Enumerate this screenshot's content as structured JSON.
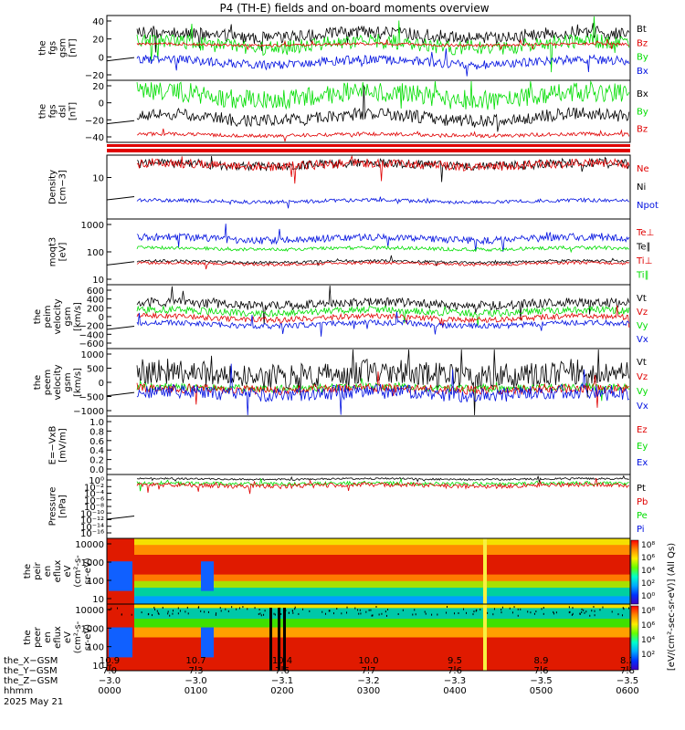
{
  "title": "P4 (TH-E) fields and on-board moments overview",
  "colors": {
    "black": "#000000",
    "red": "#e00000",
    "green": "#00dd00",
    "blue": "#0010e0"
  },
  "panels": [
    {
      "id": "fgs_gsm",
      "ylabel": [
        "the",
        "fgs",
        "gsm",
        "[nT]"
      ],
      "yticks": [
        "40",
        "20",
        "0",
        "−20"
      ],
      "legend": [
        {
          "text": "Bt",
          "color": "black"
        },
        {
          "text": "Bz",
          "color": "red"
        },
        {
          "text": "By",
          "color": "green"
        },
        {
          "text": "Bx",
          "color": "blue"
        }
      ]
    },
    {
      "id": "fgs_dsl",
      "ylabel": [
        "the",
        "fgs",
        "dsl",
        "[nT]"
      ],
      "yticks": [
        "20",
        "0",
        "−20",
        "−40"
      ],
      "legend": [
        {
          "text": "Bx",
          "color": "black"
        },
        {
          "text": "By",
          "color": "green"
        },
        {
          "text": "Bz",
          "color": "red"
        }
      ]
    },
    {
      "id": "density",
      "ylabel": [
        "Density",
        "[cm−3]"
      ],
      "yticks": [
        "10"
      ],
      "legend": [
        {
          "text": "Ne",
          "color": "red"
        },
        {
          "text": "Ni",
          "color": "black"
        },
        {
          "text": "Npot",
          "color": "blue"
        }
      ]
    },
    {
      "id": "temp",
      "ylabel": [
        "moqt3",
        "[eV]"
      ],
      "yticks": [
        "1000",
        "100",
        "10"
      ],
      "legend": [
        {
          "text": "Te⊥",
          "color": "red"
        },
        {
          "text": "Te∥",
          "color": "black"
        },
        {
          "text": "Ti⊥",
          "color": "red"
        },
        {
          "text": "Ti∥",
          "color": "green"
        }
      ]
    },
    {
      "id": "peim_vel",
      "ylabel": [
        "the",
        "peim",
        "velocity",
        "gsm",
        "[km/s]"
      ],
      "yticks": [
        "600",
        "400",
        "200",
        "0",
        "−200",
        "−400",
        "−600"
      ],
      "legend": [
        {
          "text": "Vt",
          "color": "black"
        },
        {
          "text": "Vz",
          "color": "red"
        },
        {
          "text": "Vy",
          "color": "green"
        },
        {
          "text": "Vx",
          "color": "blue"
        }
      ]
    },
    {
      "id": "peem_vel",
      "ylabel": [
        "the",
        "peem",
        "velocity",
        "gsm",
        "[km/s]"
      ],
      "yticks": [
        "1000",
        "500",
        "0",
        "−500",
        "−1000"
      ],
      "legend": [
        {
          "text": "Vt",
          "color": "black"
        },
        {
          "text": "Vz",
          "color": "red"
        },
        {
          "text": "Vy",
          "color": "green"
        },
        {
          "text": "Vx",
          "color": "blue"
        }
      ]
    },
    {
      "id": "efield",
      "ylabel": [
        "E=−VxB",
        "[mV/m]"
      ],
      "yticks": [
        "1.0",
        "0.8",
        "0.6",
        "0.4",
        "0.2",
        "0.0"
      ],
      "legend": [
        {
          "text": "Ez",
          "color": "red"
        },
        {
          "text": "Ey",
          "color": "green"
        },
        {
          "text": "Ex",
          "color": "blue"
        }
      ]
    },
    {
      "id": "pressure",
      "ylabel": [
        "Pressure",
        "[nPa]"
      ],
      "yticks": [
        "10⁰",
        "10⁻²",
        "10⁻⁴",
        "10⁻⁶",
        "10⁻⁸",
        "10⁻¹⁰",
        "10⁻¹²",
        "10⁻¹⁴",
        "10⁻¹⁶"
      ],
      "legend": [
        {
          "text": "Pt",
          "color": "black"
        },
        {
          "text": "Pb",
          "color": "red"
        },
        {
          "text": "Pe",
          "color": "green"
        },
        {
          "text": "Pi",
          "color": "blue"
        }
      ]
    },
    {
      "id": "peir",
      "ylabel": [
        "the",
        "peir",
        "en",
        "eflux",
        "eV",
        "(cm²-s-",
        "sr-eV)"
      ],
      "yticks": [
        "10000",
        "1000",
        "100",
        "10"
      ],
      "legend": []
    },
    {
      "id": "peer",
      "ylabel": [
        "the",
        "peer",
        "en",
        "eflux",
        "eV",
        "(cm²-s-",
        "sr-eV)"
      ],
      "yticks": [
        "10000",
        "1000",
        "100",
        "10"
      ],
      "legend": []
    }
  ],
  "colorbar": {
    "label": "[eV/(cm²-sec-sr-eV)] (All Qs)",
    "ticks_top": [
      "10⁸",
      "10⁶",
      "10⁴",
      "10²",
      "10⁰"
    ],
    "ticks_bottom": [
      "10⁸",
      "10⁶",
      "10⁴",
      "10²"
    ]
  },
  "xaxis": {
    "row_labels": [
      "the_X−GSM",
      "the_Y−GSM",
      "the_Z−GSM",
      "hhmm",
      "2025 May 21"
    ],
    "ticks": [
      {
        "x": "10.9",
        "y": "7.0",
        "z": "−3.0",
        "t": "0000"
      },
      {
        "x": "10.7",
        "y": "7.3",
        "z": "−3.0",
        "t": "0100"
      },
      {
        "x": "10.4",
        "y": "7.6",
        "z": "−3.1",
        "t": "0200"
      },
      {
        "x": "10.0",
        "y": "7.7",
        "z": "−3.2",
        "t": "0300"
      },
      {
        "x": "9.5",
        "y": "7.6",
        "z": "−3.3",
        "t": "0400"
      },
      {
        "x": "8.9",
        "y": "7.6",
        "z": "−3.5",
        "t": "0500"
      },
      {
        "x": "8.2",
        "y": "7.8",
        "z": "−3.5",
        "t": "0600"
      }
    ]
  },
  "chart_data": {
    "type": "line",
    "title": "P4 (TH-E) fields and on-board moments overview",
    "x_time": [
      "0000",
      "0100",
      "0200",
      "0300",
      "0400",
      "0500",
      "0600"
    ],
    "series_approx": [
      {
        "panel": "the fgs gsm [nT]",
        "name": "Bt",
        "values": [
          30,
          30,
          32,
          33,
          30,
          30,
          28
        ]
      },
      {
        "panel": "the fgs gsm [nT]",
        "name": "Bz",
        "values": [
          15,
          15,
          14,
          13,
          14,
          14,
          15
        ]
      },
      {
        "panel": "the fgs gsm [nT]",
        "name": "By",
        "values": [
          0,
          10,
          10,
          12,
          10,
          10,
          8
        ]
      },
      {
        "panel": "the fgs gsm [nT]",
        "name": "Bx",
        "values": [
          -10,
          -15,
          -15,
          -12,
          -12,
          -12,
          -10
        ]
      },
      {
        "panel": "the fgs dsl [nT]",
        "name": "Bx",
        "values": [
          -20,
          -15,
          -20,
          -10,
          -15,
          -20,
          -20
        ]
      },
      {
        "panel": "the fgs dsl [nT]",
        "name": "By",
        "values": [
          20,
          15,
          20,
          10,
          15,
          20,
          15
        ]
      },
      {
        "panel": "the fgs dsl [nT]",
        "name": "Bz",
        "values": [
          -45,
          -40,
          -42,
          -40,
          -40,
          -38,
          -38
        ]
      },
      {
        "panel": "Density [cm-3]",
        "name": "Ne",
        "values": [
          4,
          15,
          14,
          14,
          13,
          13,
          12
        ]
      },
      {
        "panel": "moqt3 [eV]",
        "name": "Ti∥",
        "values": [
          300,
          300,
          300,
          300,
          300,
          300,
          300
        ]
      },
      {
        "panel": "the peim velocity gsm [km/s]",
        "name": "Vt",
        "values": [
          200,
          250,
          230,
          240,
          260,
          240,
          240
        ]
      },
      {
        "panel": "the peim velocity gsm [km/s]",
        "name": "Vx",
        "values": [
          -300,
          -220,
          -200,
          -200,
          -180,
          -200,
          -200
        ]
      }
    ]
  }
}
